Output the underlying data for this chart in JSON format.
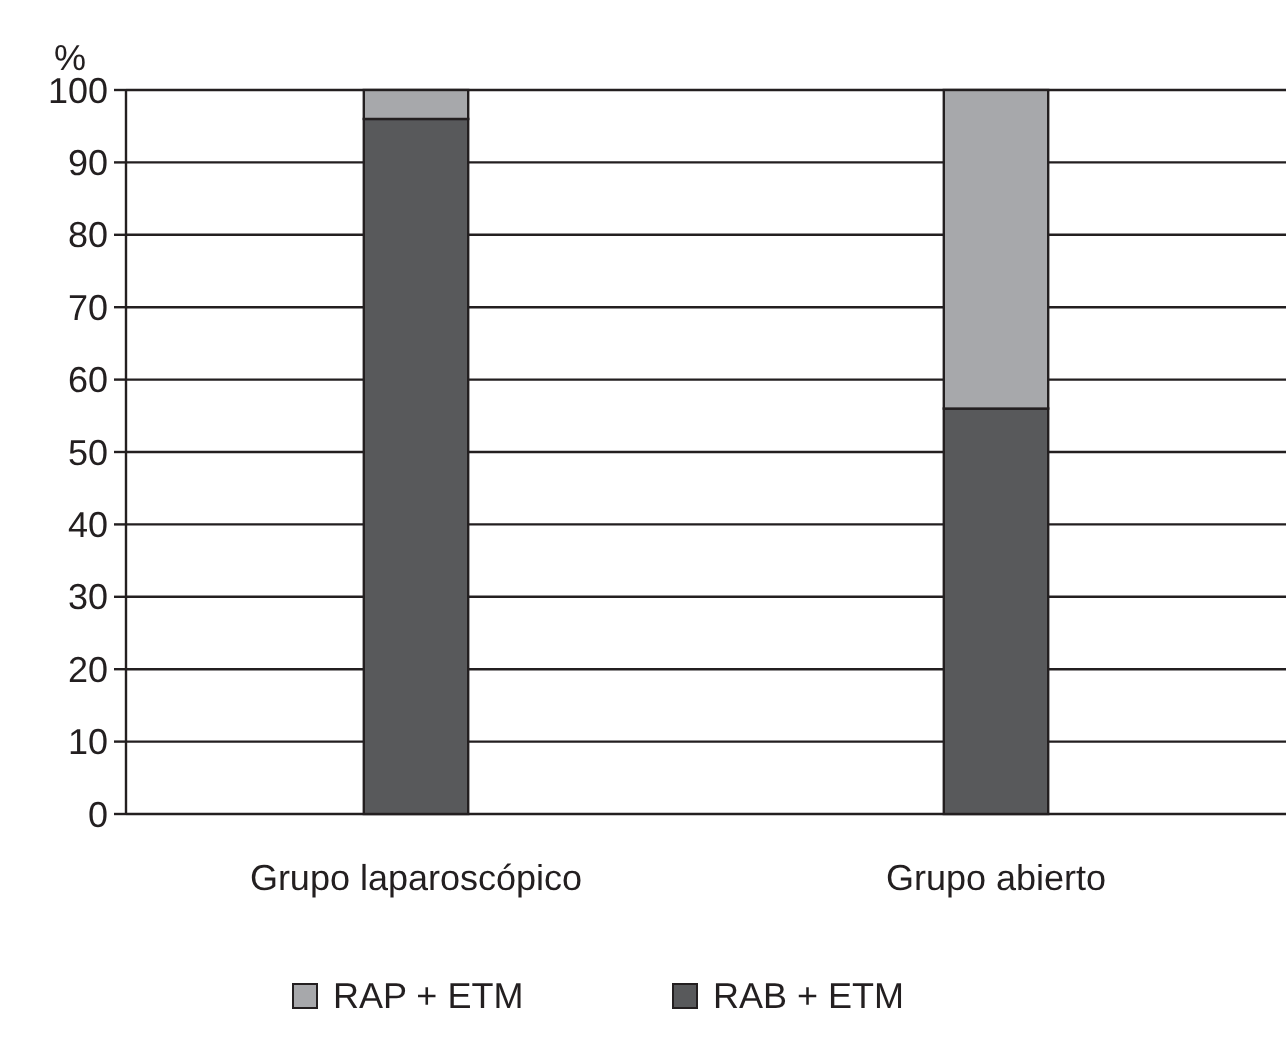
{
  "chart_data": {
    "type": "bar",
    "stacked": true,
    "ylabel": "%",
    "categories": [
      "Grupo laparoscópico",
      "Grupo abierto"
    ],
    "series": [
      {
        "name": "RAB + ETM",
        "color": "#58595b",
        "values": [
          96,
          56
        ]
      },
      {
        "name": "RAP + ETM",
        "color": "#a7a8ab",
        "values": [
          4,
          44
        ]
      }
    ],
    "ylim": [
      0,
      100
    ],
    "yticks": [
      0,
      10,
      20,
      30,
      40,
      50,
      60,
      70,
      80,
      90,
      100
    ],
    "grid": "y",
    "legend": "bottom"
  }
}
